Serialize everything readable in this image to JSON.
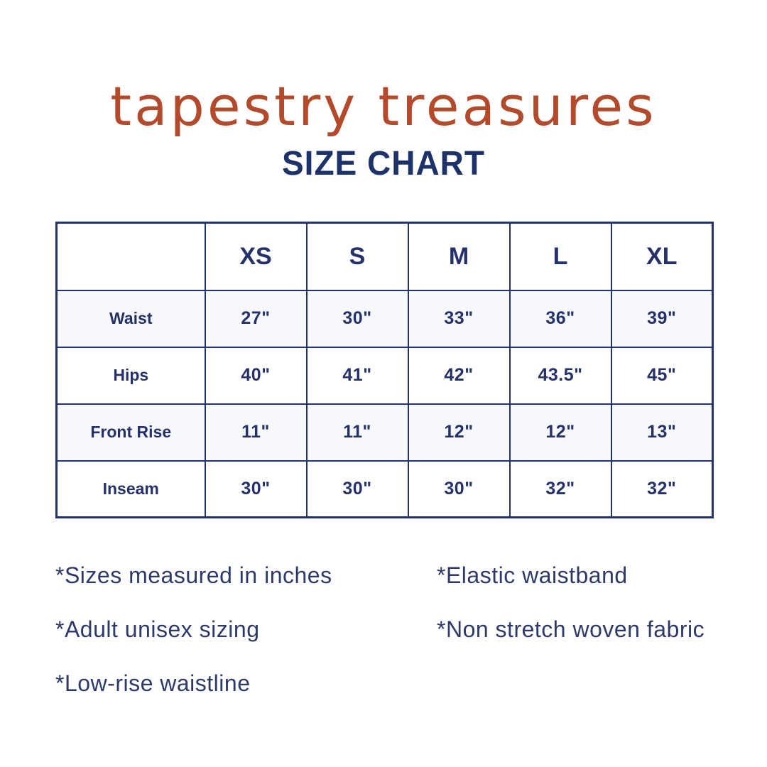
{
  "header": {
    "brand": "tapestry treasures",
    "title": "SIZE CHART"
  },
  "colors": {
    "brand_rust": "#b34a2b",
    "navy": "#25316a",
    "table_border": "#253266",
    "striped_row_bg": "#f6f8fc",
    "page_bg": "#ffffff"
  },
  "chart_data": {
    "type": "table",
    "columns": [
      "",
      "XS",
      "S",
      "M",
      "L",
      "XL"
    ],
    "rows": [
      {
        "label": "Waist",
        "values": [
          "27\"",
          "30\"",
          "33\"",
          "36\"",
          "39\""
        ]
      },
      {
        "label": "Hips",
        "values": [
          "40\"",
          "41\"",
          "42\"",
          "43.5\"",
          "45\""
        ]
      },
      {
        "label": "Front Rise",
        "values": [
          "11\"",
          "11\"",
          "12\"",
          "12\"",
          "13\""
        ]
      },
      {
        "label": "Inseam",
        "values": [
          "30\"",
          "30\"",
          "30\"",
          "32\"",
          "32\""
        ]
      }
    ]
  },
  "notes": {
    "left": [
      "*Sizes measured in inches",
      "*Adult unisex sizing",
      "*Low-rise waistline"
    ],
    "right": [
      "*Elastic waistband",
      "*Non stretch woven fabric"
    ]
  }
}
